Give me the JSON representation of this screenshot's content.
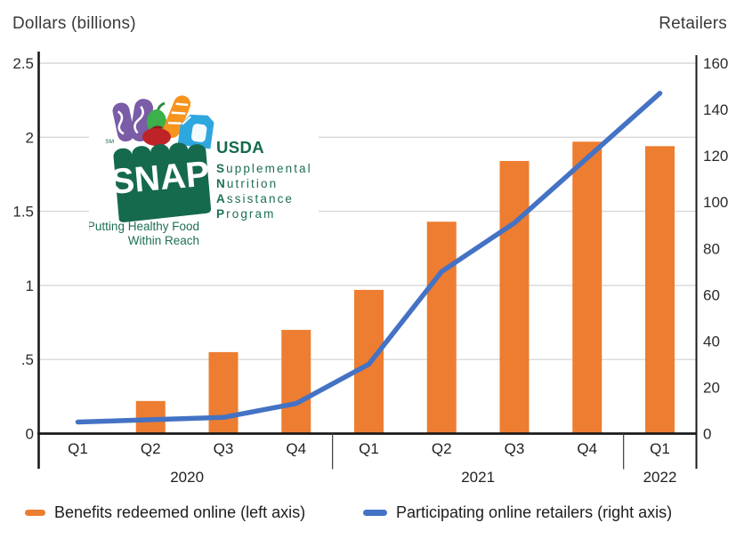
{
  "logo": {
    "sm": "SM",
    "snap": "SNAP",
    "usda": "USDA",
    "acronym": [
      {
        "initial": "S",
        "rest": "upplemental"
      },
      {
        "initial": "N",
        "rest": "utrition"
      },
      {
        "initial": "A",
        "rest": "ssistance"
      },
      {
        "initial": "P",
        "rest": "rogram"
      }
    ],
    "tagline1": "Putting Healthy Food",
    "tagline2": "Within Reach",
    "colors": {
      "green": "#15694C",
      "text_green": "#1E6F51",
      "purple": "#7B5CA7",
      "orange": "#F7941D",
      "red": "#BE2328",
      "leaf_green": "#3CB04B",
      "blue": "#2EA7DF"
    }
  },
  "chart_data": {
    "type": "bar+line (dual axis)",
    "categories": [
      "Q1",
      "Q2",
      "Q3",
      "Q4",
      "Q1",
      "Q2",
      "Q3",
      "Q4",
      "Q1"
    ],
    "year_groups": [
      {
        "label": "2020",
        "quarters": 4
      },
      {
        "label": "2021",
        "quarters": 4
      },
      {
        "label": "2022",
        "quarters": 1
      }
    ],
    "series": [
      {
        "name": "Benefits redeemed online (left axis)",
        "type": "bar",
        "axis": "left",
        "color": "#ED7D31",
        "values": [
          0.005,
          0.22,
          0.55,
          0.7,
          0.97,
          1.43,
          1.84,
          1.97,
          1.94
        ]
      },
      {
        "name": "Participating online retailers (right axis)",
        "type": "line",
        "axis": "right",
        "color": "#4472C4",
        "values": [
          5,
          6,
          7,
          13,
          30,
          70,
          91,
          119,
          147
        ]
      }
    ],
    "left_axis": {
      "title": "Dollars (billions)",
      "min": 0,
      "max": 2.5,
      "tick_values": [
        0,
        0.5,
        1,
        1.5,
        2,
        2.5
      ],
      "tick_labels": [
        "0",
        ".5",
        "1",
        "1.5",
        "2",
        "2.5"
      ]
    },
    "right_axis": {
      "title": "Retailers",
      "min": 0,
      "max": 160,
      "tick_values": [
        0,
        20,
        40,
        60,
        80,
        100,
        120,
        140,
        160
      ]
    },
    "grid": "horizontal gridlines at every 0.5 left-axis units",
    "legend_position": "bottom"
  }
}
